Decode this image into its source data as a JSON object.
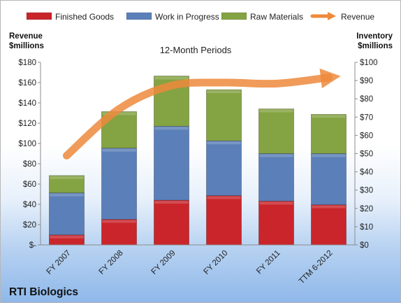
{
  "chart_data": {
    "type": "bar",
    "stacked": true,
    "title": "12-Month Periods",
    "company": "RTI Biologics",
    "categories": [
      "FY 2007",
      "FY 2008",
      "FY 2009",
      "FY 2010",
      "FY 2011",
      "TTM 6-2012"
    ],
    "series": [
      {
        "name": "Finished Goods",
        "axis": "right",
        "color": "#c9252b",
        "values": [
          5.5,
          14,
          24.5,
          27,
          24,
          22
        ]
      },
      {
        "name": "Work in Progress",
        "axis": "right",
        "color": "#5b7fb8",
        "values": [
          23,
          39,
          40.5,
          30,
          26,
          28
        ]
      },
      {
        "name": "Raw Materials",
        "axis": "right",
        "color": "#84a342",
        "values": [
          9.5,
          20,
          27.5,
          28,
          24.5,
          21.5
        ]
      }
    ],
    "revenue_series": {
      "name": "Revenue",
      "axis": "left",
      "color": "#ed8a3c",
      "values": [
        88,
        134,
        157,
        160,
        159,
        165
      ]
    },
    "y_left": {
      "label_line1": "Revenue",
      "label_line2": "$millions",
      "min": 0,
      "max": 180,
      "step": 20,
      "tick_labels": [
        "$-",
        "$20",
        "$40",
        "$60",
        "$80",
        "$100",
        "$120",
        "$140",
        "$160",
        "$180"
      ]
    },
    "y_right": {
      "label_line1": "Inventory",
      "label_line2": "$millions",
      "min": 0,
      "max": 100,
      "step": 10,
      "tick_labels": [
        "$0",
        "$10",
        "$20",
        "$30",
        "$40",
        "$50",
        "$60",
        "$70",
        "$80",
        "$90",
        "$100"
      ]
    },
    "grid": false,
    "legend_position": "top"
  }
}
